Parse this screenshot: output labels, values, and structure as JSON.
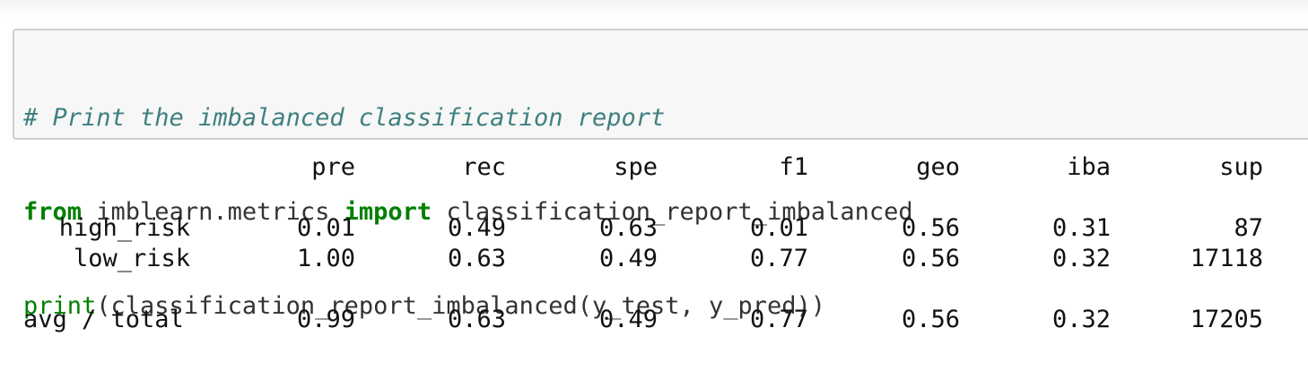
{
  "code": {
    "comment": "# Print the imbalanced classification report",
    "line2_kw1": "from",
    "line2_module": " imblearn.metrics ",
    "line2_kw2": "import",
    "line2_name": " classification_report_imbalanced",
    "line3_builtin": "print",
    "line3_rest": "(classification_report_imbalanced(y_test, y_pred))"
  },
  "report": {
    "headers": [
      "pre",
      "rec",
      "spe",
      "f1",
      "geo",
      "iba",
      "sup"
    ],
    "rows": [
      {
        "label": "high_risk",
        "values": [
          "0.01",
          "0.49",
          "0.63",
          "0.01",
          "0.56",
          "0.31",
          "87"
        ]
      },
      {
        "label": "low_risk",
        "values": [
          "1.00",
          "0.63",
          "0.49",
          "0.77",
          "0.56",
          "0.32",
          "17118"
        ]
      }
    ],
    "total": {
      "label": "avg / total",
      "values": [
        "0.99",
        "0.63",
        "0.49",
        "0.77",
        "0.56",
        "0.32",
        "17205"
      ]
    }
  }
}
